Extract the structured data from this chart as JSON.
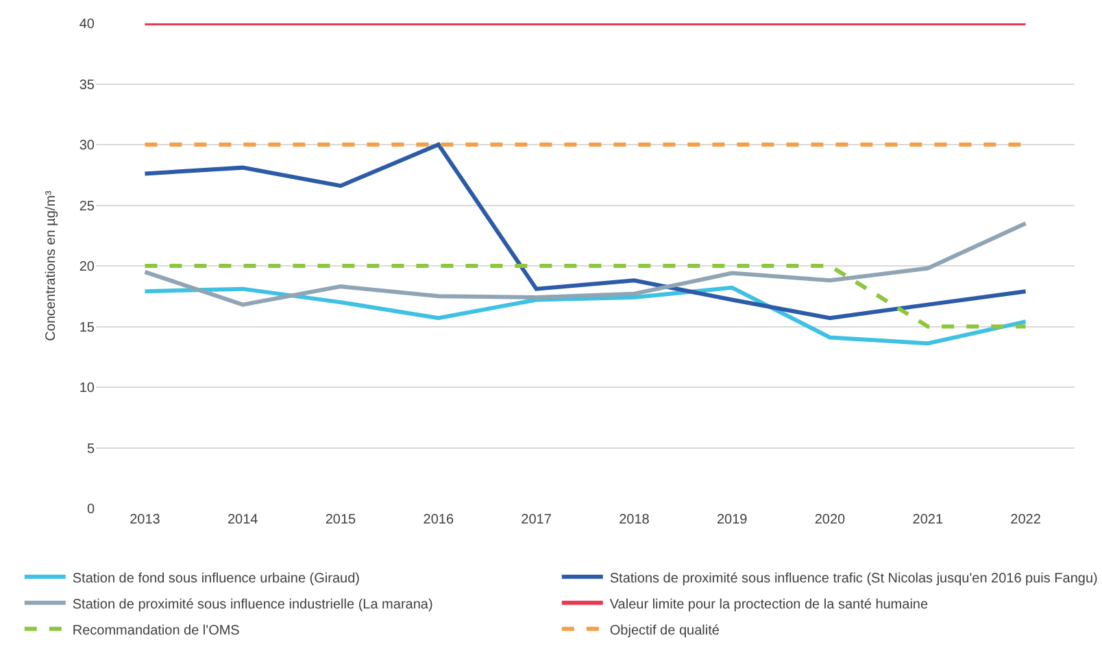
{
  "chart_data": {
    "type": "line",
    "ylabel": "Concentrations en µg/m³",
    "categories": [
      "2013",
      "2014",
      "2015",
      "2016",
      "2017",
      "2018",
      "2019",
      "2020",
      "2021",
      "2022"
    ],
    "series": [
      {
        "name": "Station de fond sous influence urbaine (Giraud)",
        "color": "#3fc1e3",
        "values": [
          17.9,
          18.1,
          17.0,
          15.7,
          17.2,
          17.4,
          18.2,
          14.1,
          13.6,
          15.4
        ]
      },
      {
        "name": "Stations de proximité sous influence trafic (St Nicolas jusqu'en 2016 puis Fangu)",
        "color": "#2c5ba8",
        "values": [
          27.6,
          28.1,
          26.6,
          30.0,
          18.1,
          18.8,
          17.2,
          15.7,
          16.8,
          17.9
        ]
      },
      {
        "name": "Station de proximité sous influence industrielle (La marana)",
        "color": "#8fa5b5",
        "values": [
          19.5,
          16.8,
          18.3,
          17.5,
          17.4,
          17.7,
          19.4,
          18.8,
          19.8,
          23.5
        ]
      },
      {
        "name": "Valeur limite pour la proctection de la santé humaine",
        "color": "#e8384f",
        "values": [
          40,
          40,
          40,
          40,
          40,
          40,
          40,
          40,
          40,
          40
        ]
      },
      {
        "name": "Recommandation de l'OMS",
        "color": "#8dc63f",
        "line_style": "dashed",
        "values": [
          20,
          20,
          20,
          20,
          20,
          20,
          20,
          20,
          15,
          15
        ]
      },
      {
        "name": "Objectif de qualité",
        "color": "#f4a04a",
        "line_style": "dashed",
        "values": [
          30,
          30,
          30,
          30,
          30,
          30,
          30,
          30,
          30,
          30
        ]
      }
    ],
    "ylim": [
      0,
      40
    ],
    "yticks": [
      0,
      5,
      10,
      15,
      20,
      25,
      30,
      35,
      40
    ],
    "grid": "y",
    "legend": "bottom",
    "marker": "none"
  }
}
